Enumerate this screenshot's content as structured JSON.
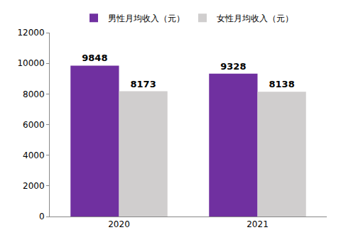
{
  "chart_data": {
    "type": "bar",
    "categories": [
      "2020",
      "2021"
    ],
    "series": [
      {
        "name": "男性月均收入（元）",
        "color": "#7030a0",
        "values": [
          9848,
          9328
        ]
      },
      {
        "name": "女性月均收入（元）",
        "color": "#d0cece",
        "values": [
          8173,
          8138
        ]
      }
    ],
    "ylim": [
      0,
      12000
    ],
    "yticks": [
      0,
      2000,
      4000,
      6000,
      8000,
      10000,
      12000
    ],
    "grid": false,
    "legend": "top",
    "data_labels": true
  }
}
